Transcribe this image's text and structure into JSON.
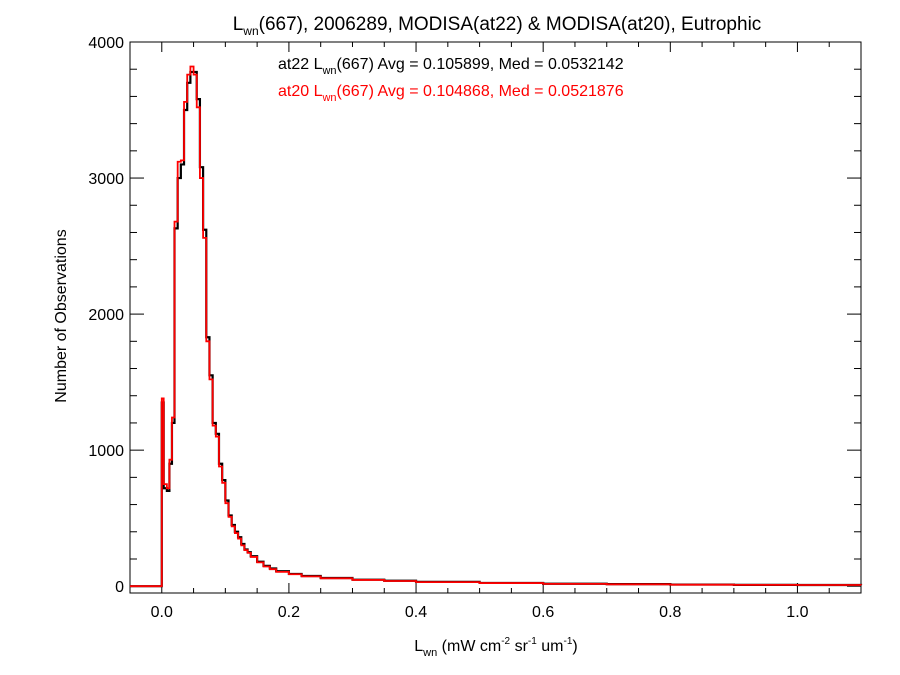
{
  "chart_data": {
    "type": "line",
    "title": {
      "prefix": "L",
      "sub": "wn",
      "suffix": "(667), 2006289, MODISA(at22) & MODISA(at20), Eutrophic"
    },
    "xlabel": {
      "main": "L",
      "sub": "wn",
      "unit_open": " (mW cm",
      "sup1": "-2",
      "unit_mid1": " sr",
      "sup2": "-1",
      "unit_mid2": " um",
      "sup3": "-1",
      "unit_close": ")"
    },
    "ylabel": "Number of Observations",
    "xlim": [
      -0.05,
      1.1
    ],
    "ylim": [
      -50,
      4000
    ],
    "xticks": [
      0.0,
      0.2,
      0.4,
      0.6,
      0.8,
      1.0
    ],
    "xtick_labels": [
      "0.0",
      "0.2",
      "0.4",
      "0.6",
      "0.8",
      "1.0"
    ],
    "yticks": [
      0,
      1000,
      2000,
      3000,
      4000
    ],
    "ytick_labels": [
      "0",
      "1000",
      "2000",
      "3000",
      "4000"
    ],
    "grid": false,
    "series": [
      {
        "name": "at22",
        "color": "#000000",
        "annotation": {
          "pre": "at22 L",
          "sub": "wn",
          "post": "(667) Avg = 0.105899, Med = 0.0532142"
        },
        "points": [
          [
            -0.05,
            0
          ],
          [
            0.0,
            0
          ],
          [
            0.0,
            1350
          ],
          [
            0.002,
            1350
          ],
          [
            0.003,
            720
          ],
          [
            0.008,
            700
          ],
          [
            0.012,
            900
          ],
          [
            0.016,
            1200
          ],
          [
            0.02,
            2630
          ],
          [
            0.025,
            3000
          ],
          [
            0.03,
            3100
          ],
          [
            0.035,
            3500
          ],
          [
            0.04,
            3700
          ],
          [
            0.045,
            3780
          ],
          [
            0.05,
            3780
          ],
          [
            0.055,
            3580
          ],
          [
            0.06,
            3080
          ],
          [
            0.065,
            2620
          ],
          [
            0.07,
            1830
          ],
          [
            0.075,
            1550
          ],
          [
            0.08,
            1200
          ],
          [
            0.085,
            1120
          ],
          [
            0.09,
            900
          ],
          [
            0.095,
            780
          ],
          [
            0.1,
            630
          ],
          [
            0.105,
            520
          ],
          [
            0.11,
            450
          ],
          [
            0.115,
            400
          ],
          [
            0.12,
            360
          ],
          [
            0.125,
            310
          ],
          [
            0.13,
            270
          ],
          [
            0.135,
            250
          ],
          [
            0.14,
            220
          ],
          [
            0.15,
            180
          ],
          [
            0.16,
            150
          ],
          [
            0.17,
            130
          ],
          [
            0.18,
            110
          ],
          [
            0.2,
            90
          ],
          [
            0.22,
            75
          ],
          [
            0.25,
            60
          ],
          [
            0.3,
            48
          ],
          [
            0.35,
            40
          ],
          [
            0.4,
            32
          ],
          [
            0.5,
            24
          ],
          [
            0.6,
            18
          ],
          [
            0.7,
            15
          ],
          [
            0.8,
            12
          ],
          [
            0.9,
            10
          ],
          [
            1.0,
            9
          ],
          [
            1.1,
            8
          ]
        ]
      },
      {
        "name": "at20",
        "color": "#ff0000",
        "annotation": {
          "pre": "at20 L",
          "sub": "wn",
          "post": "(667) Avg = 0.104868, Med = 0.0521876"
        },
        "points": [
          [
            -0.05,
            0
          ],
          [
            0.0,
            0
          ],
          [
            0.0,
            1380
          ],
          [
            0.002,
            1380
          ],
          [
            0.003,
            750
          ],
          [
            0.008,
            720
          ],
          [
            0.012,
            930
          ],
          [
            0.016,
            1240
          ],
          [
            0.02,
            2680
          ],
          [
            0.025,
            3120
          ],
          [
            0.03,
            3130
          ],
          [
            0.035,
            3560
          ],
          [
            0.04,
            3760
          ],
          [
            0.045,
            3820
          ],
          [
            0.05,
            3760
          ],
          [
            0.055,
            3520
          ],
          [
            0.06,
            3000
          ],
          [
            0.065,
            2560
          ],
          [
            0.07,
            1800
          ],
          [
            0.075,
            1520
          ],
          [
            0.08,
            1180
          ],
          [
            0.085,
            1100
          ],
          [
            0.09,
            880
          ],
          [
            0.095,
            760
          ],
          [
            0.1,
            610
          ],
          [
            0.105,
            510
          ],
          [
            0.11,
            440
          ],
          [
            0.115,
            390
          ],
          [
            0.12,
            350
          ],
          [
            0.125,
            300
          ],
          [
            0.13,
            265
          ],
          [
            0.135,
            245
          ],
          [
            0.14,
            215
          ],
          [
            0.15,
            175
          ],
          [
            0.16,
            145
          ],
          [
            0.17,
            125
          ],
          [
            0.18,
            105
          ],
          [
            0.2,
            88
          ],
          [
            0.22,
            72
          ],
          [
            0.25,
            58
          ],
          [
            0.3,
            46
          ],
          [
            0.35,
            38
          ],
          [
            0.4,
            30
          ],
          [
            0.5,
            23
          ],
          [
            0.6,
            17
          ],
          [
            0.7,
            14
          ],
          [
            0.8,
            11
          ],
          [
            0.9,
            10
          ],
          [
            1.0,
            9
          ],
          [
            1.1,
            8
          ]
        ]
      }
    ]
  }
}
